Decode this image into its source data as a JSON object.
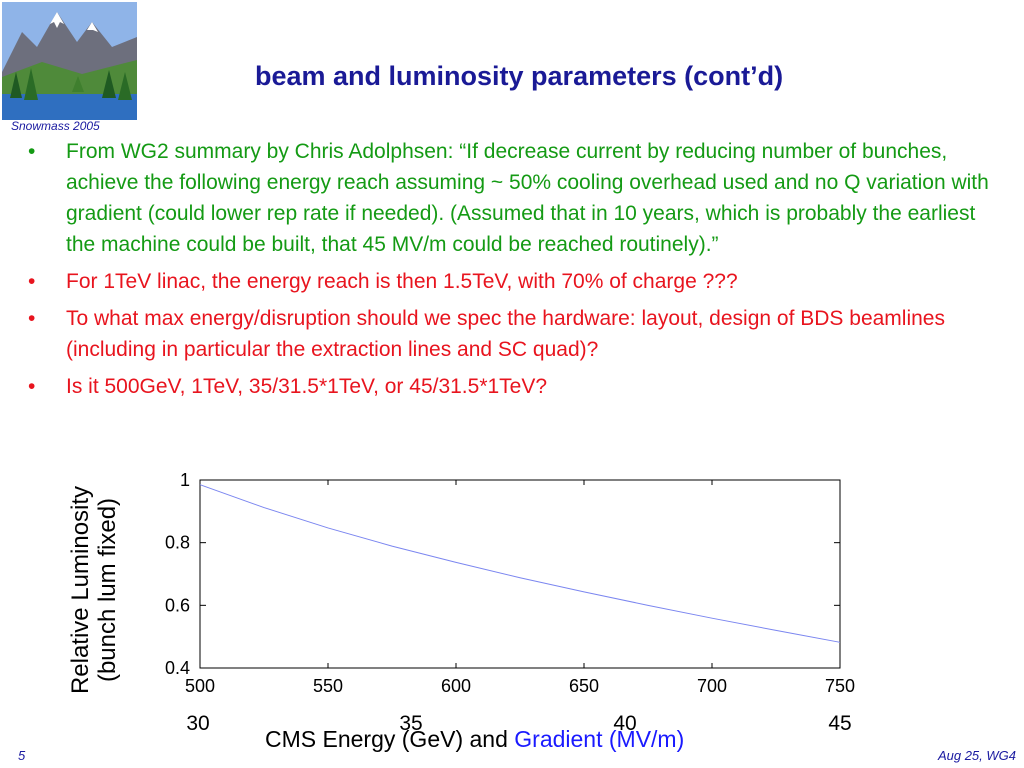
{
  "header": {
    "logo_caption": "Snowmass 2005",
    "title": "beam and luminosity parameters (cont’d)"
  },
  "bullets": [
    {
      "text": "From WG2 summary by Chris Adolphsen:  “If decrease current by reducing number of bunches, achieve the following energy reach assuming ~ 50% cooling overhead used and no Q variation with gradient (could lower rep rate if needed). (Assumed that in 10 years, which is probably the earliest the machine could be built, that 45 MV/m could be reached routinely).”",
      "color": "#149a14"
    },
    {
      "text": "For 1TeV linac, the energy reach is then 1.5TeV, with 70% of charge ???",
      "color": "#e8141e"
    },
    {
      "text": "To what max energy/disruption should we spec the hardware: layout, design of BDS beamlines (including in particular the extraction lines and SC quad)?",
      "color": "#e8141e"
    },
    {
      "text": "Is it 500GeV, 1TeV,  35/31.5*1TeV, or 45/31.5*1TeV?",
      "color": "#e8141e"
    }
  ],
  "chart_data": {
    "type": "line",
    "ylabel_line1": "Relative Luminosity",
    "ylabel_line2": "(bunch lum fixed)",
    "xlabel_part1": "CMS Energy (GeV) and ",
    "xlabel_part2": "Gradient (MV/m)",
    "xlim": [
      500,
      750
    ],
    "ylim": [
      0.4,
      1.0
    ],
    "x_ticks": [
      "500",
      "550",
      "600",
      "650",
      "700",
      "750"
    ],
    "y_ticks": [
      "0.4",
      "0.6",
      "0.8",
      "1"
    ],
    "gradient_ticks": [
      "30",
      "35",
      "40",
      "45"
    ],
    "series": [
      {
        "color": "#7b86f0",
        "x": [
          500,
          525,
          550,
          575,
          600,
          625,
          650,
          675,
          700,
          725,
          750
        ],
        "y": [
          0.985,
          0.912,
          0.847,
          0.789,
          0.737,
          0.688,
          0.643,
          0.6,
          0.559,
          0.52,
          0.482
        ]
      }
    ],
    "grid": false
  },
  "footer": {
    "slide_number": "5",
    "date_group": "Aug 25, WG4"
  }
}
